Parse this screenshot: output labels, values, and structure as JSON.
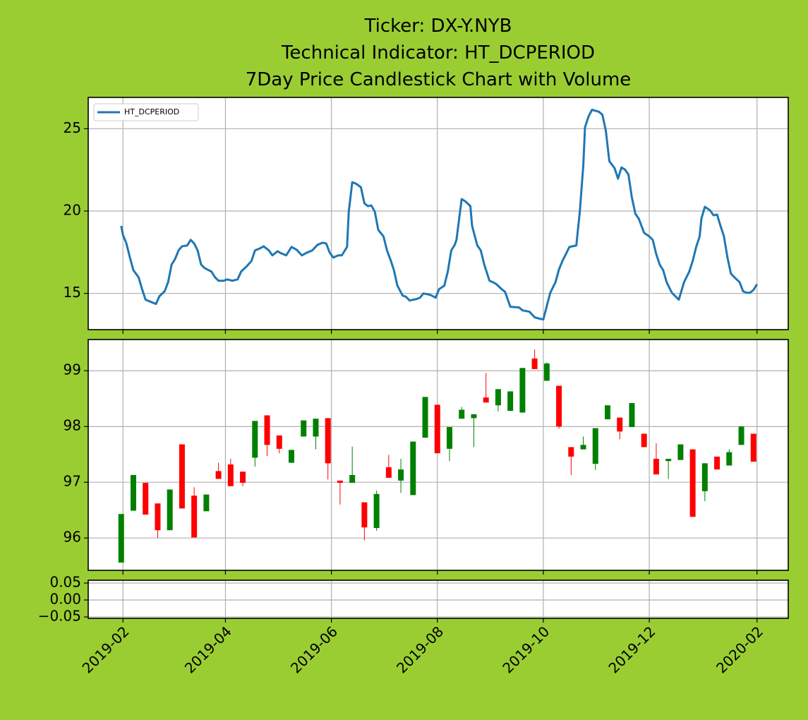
{
  "chart_data": [
    {
      "type": "line",
      "title": [
        "Ticker: DX-Y.NYB",
        "Technical Indicator: HT_DCPERIOD",
        "7Day Price Candlestick Chart with Volume"
      ],
      "x": [
        "2019-01-31",
        "2019-02-01",
        "2019-02-03",
        "2019-02-05",
        "2019-02-07",
        "2019-02-10",
        "2019-02-12",
        "2019-02-14",
        "2019-02-17",
        "2019-02-20",
        "2019-02-22",
        "2019-02-25",
        "2019-02-27",
        "2019-03-01",
        "2019-03-03",
        "2019-03-05",
        "2019-03-07",
        "2019-03-10",
        "2019-03-12",
        "2019-03-14",
        "2019-03-16",
        "2019-03-18",
        "2019-03-20",
        "2019-03-24",
        "2019-03-26",
        "2019-03-28",
        "2019-03-31",
        "2019-04-02",
        "2019-04-05",
        "2019-04-08",
        "2019-04-10",
        "2019-04-13",
        "2019-04-16",
        "2019-04-18",
        "2019-04-21",
        "2019-04-23",
        "2019-04-26",
        "2019-04-28",
        "2019-05-01",
        "2019-05-03",
        "2019-05-06",
        "2019-05-09",
        "2019-05-12",
        "2019-05-15",
        "2019-05-18",
        "2019-05-21",
        "2019-05-24",
        "2019-05-27",
        "2019-05-29",
        "2019-05-31",
        "2019-06-02",
        "2019-06-05",
        "2019-06-07",
        "2019-06-10",
        "2019-06-11",
        "2019-06-13",
        "2019-06-15",
        "2019-06-18",
        "2019-06-20",
        "2019-06-22",
        "2019-06-24",
        "2019-06-26",
        "2019-06-28",
        "2019-07-01",
        "2019-07-03",
        "2019-07-05",
        "2019-07-07",
        "2019-07-09",
        "2019-07-12",
        "2019-07-14",
        "2019-07-16",
        "2019-07-20",
        "2019-07-22",
        "2019-07-24",
        "2019-07-28",
        "2019-07-31",
        "2019-08-02",
        "2019-08-05",
        "2019-08-07",
        "2019-08-09",
        "2019-08-11",
        "2019-08-12",
        "2019-08-15",
        "2019-08-17",
        "2019-08-20",
        "2019-08-21",
        "2019-08-24",
        "2019-08-26",
        "2019-08-28",
        "2019-08-31",
        "2019-09-02",
        "2019-09-04",
        "2019-09-07",
        "2019-09-09",
        "2019-09-12",
        "2019-09-17",
        "2019-09-19",
        "2019-09-23",
        "2019-09-26",
        "2019-09-29",
        "2019-10-01",
        "2019-10-03",
        "2019-10-05",
        "2019-10-08",
        "2019-10-10",
        "2019-10-12",
        "2019-10-14",
        "2019-10-16",
        "2019-10-20",
        "2019-10-22",
        "2019-10-24",
        "2019-10-25",
        "2019-10-27",
        "2019-10-29",
        "2019-11-02",
        "2019-11-04",
        "2019-11-06",
        "2019-11-08",
        "2019-11-11",
        "2019-11-13",
        "2019-11-15",
        "2019-11-17",
        "2019-11-19",
        "2019-11-21",
        "2019-11-23",
        "2019-11-25",
        "2019-11-28",
        "2019-12-01",
        "2019-12-03",
        "2019-12-05",
        "2019-12-07",
        "2019-12-09",
        "2019-12-11",
        "2019-12-14",
        "2019-12-16",
        "2019-12-18",
        "2019-12-21",
        "2019-12-24",
        "2019-12-26",
        "2019-12-28",
        "2019-12-30",
        "2019-12-31",
        "2020-01-02",
        "2020-01-05",
        "2020-01-07",
        "2020-01-09",
        "2020-01-11",
        "2020-01-13",
        "2020-01-15",
        "2020-01-17",
        "2020-01-19",
        "2020-01-22",
        "2020-01-24",
        "2020-01-26",
        "2020-01-28",
        "2020-01-30",
        "2020-02-01"
      ],
      "series": [
        {
          "name": "HT_DCPERIOD",
          "color": "#1f77b4",
          "values": [
            19.1,
            18.55,
            18.03,
            17.18,
            16.41,
            15.98,
            15.26,
            14.62,
            14.49,
            14.36,
            14.83,
            15.13,
            15.68,
            16.75,
            17.09,
            17.61,
            17.86,
            17.91,
            18.25,
            18.03,
            17.61,
            16.75,
            16.54,
            16.32,
            15.98,
            15.77,
            15.77,
            15.85,
            15.77,
            15.85,
            16.32,
            16.62,
            16.97,
            17.61,
            17.74,
            17.86,
            17.61,
            17.31,
            17.56,
            17.44,
            17.31,
            17.82,
            17.65,
            17.31,
            17.48,
            17.61,
            17.95,
            18.08,
            18.03,
            17.48,
            17.18,
            17.31,
            17.31,
            17.82,
            19.96,
            21.75,
            21.67,
            21.45,
            20.47,
            20.3,
            20.34,
            19.96,
            18.85,
            18.46,
            17.61,
            17.05,
            16.41,
            15.47,
            14.87,
            14.79,
            14.57,
            14.66,
            14.74,
            15.0,
            14.91,
            14.74,
            15.26,
            15.47,
            16.32,
            17.61,
            17.95,
            18.25,
            20.73,
            20.6,
            20.3,
            19.1,
            17.91,
            17.61,
            16.75,
            15.77,
            15.68,
            15.56,
            15.26,
            15.09,
            14.19,
            14.15,
            13.97,
            13.89,
            13.55,
            13.46,
            13.42,
            14.23,
            15.04,
            15.68,
            16.45,
            16.97,
            17.39,
            17.82,
            17.91,
            19.96,
            22.74,
            25.09,
            25.73,
            26.15,
            26.03,
            25.85,
            24.87,
            23.03,
            22.61,
            21.97,
            22.65,
            22.52,
            22.22,
            20.81,
            19.83,
            19.53,
            18.68,
            18.46,
            18.25,
            17.39,
            16.75,
            16.41,
            15.68,
            15.04,
            14.83,
            14.62,
            15.68,
            16.32,
            16.97,
            17.82,
            18.46,
            19.53,
            20.26,
            20.04,
            19.74,
            19.79,
            19.1,
            18.46,
            17.18,
            16.2,
            15.98,
            15.68,
            15.13,
            15.04,
            15.04,
            15.21,
            15.56
          ]
        }
      ],
      "ylim": [
        12.8,
        26.9
      ],
      "yticks": [
        15,
        20,
        25
      ],
      "grid": true,
      "legend": "upper left"
    },
    {
      "type": "candlestick",
      "x": [
        "2019-01-31",
        "2019-02-07",
        "2019-02-14",
        "2019-02-21",
        "2019-02-28",
        "2019-03-07",
        "2019-03-14",
        "2019-03-21",
        "2019-03-28",
        "2019-04-04",
        "2019-04-11",
        "2019-04-18",
        "2019-04-25",
        "2019-05-02",
        "2019-05-09",
        "2019-05-16",
        "2019-05-23",
        "2019-05-30",
        "2019-06-06",
        "2019-06-13",
        "2019-06-20",
        "2019-06-27",
        "2019-07-04",
        "2019-07-11",
        "2019-07-18",
        "2019-07-25",
        "2019-08-01",
        "2019-08-08",
        "2019-08-15",
        "2019-08-22",
        "2019-08-29",
        "2019-09-05",
        "2019-09-12",
        "2019-09-19",
        "2019-09-26",
        "2019-10-03",
        "2019-10-10",
        "2019-10-17",
        "2019-10-24",
        "2019-10-31",
        "2019-11-07",
        "2019-11-14",
        "2019-11-21",
        "2019-11-28",
        "2019-12-05",
        "2019-12-12",
        "2019-12-19",
        "2019-12-26",
        "2020-01-02",
        "2020-01-09",
        "2020-01-16",
        "2020-01-23",
        "2020-01-30"
      ],
      "open": [
        95.56,
        96.49,
        96.99,
        96.62,
        96.14,
        97.68,
        96.76,
        96.48,
        97.2,
        97.32,
        97.19,
        97.44,
        98.2,
        97.84,
        97.35,
        97.82,
        97.82,
        98.15,
        97.03,
        96.99,
        96.64,
        96.18,
        97.27,
        97.03,
        96.77,
        97.8,
        98.39,
        97.6,
        98.14,
        98.15,
        98.52,
        98.38,
        98.28,
        98.25,
        99.22,
        98.82,
        98.73,
        97.63,
        97.59,
        97.33,
        98.13,
        98.16,
        97.99,
        97.87,
        97.42,
        97.38,
        97.4,
        97.59,
        96.84,
        97.46,
        97.3,
        97.67,
        97.87
      ],
      "high": [
        96.43,
        97.13,
        96.99,
        96.62,
        96.87,
        97.68,
        96.91,
        96.78,
        97.35,
        97.42,
        97.19,
        98.1,
        98.2,
        97.84,
        97.58,
        98.11,
        98.14,
        98.15,
        97.03,
        97.64,
        96.64,
        96.85,
        97.49,
        97.42,
        97.73,
        98.53,
        98.39,
        97.99,
        98.35,
        98.22,
        98.96,
        98.67,
        98.63,
        99.05,
        99.38,
        99.15,
        98.73,
        97.63,
        97.82,
        97.97,
        98.38,
        98.16,
        98.42,
        97.87,
        97.7,
        97.42,
        97.68,
        97.59,
        97.34,
        97.46,
        97.59,
        98.01,
        97.87
      ],
      "low": [
        95.56,
        96.49,
        96.42,
        96.0,
        96.14,
        96.53,
        96.01,
        96.48,
        97.06,
        96.93,
        96.93,
        97.28,
        97.47,
        97.52,
        97.35,
        97.82,
        97.59,
        97.05,
        96.6,
        96.99,
        95.96,
        96.13,
        97.08,
        96.81,
        96.77,
        97.8,
        97.52,
        97.38,
        98.14,
        97.63,
        98.43,
        98.27,
        98.28,
        98.25,
        99.03,
        98.82,
        97.96,
        97.13,
        97.59,
        97.22,
        98.13,
        97.77,
        97.99,
        97.63,
        97.14,
        97.06,
        97.4,
        96.38,
        96.66,
        97.23,
        97.3,
        97.67,
        97.37
      ],
      "close": [
        96.43,
        97.13,
        96.42,
        96.14,
        96.87,
        96.53,
        96.01,
        96.78,
        97.06,
        96.93,
        96.99,
        98.1,
        97.67,
        97.6,
        97.58,
        98.11,
        98.14,
        97.34,
        96.99,
        97.13,
        96.19,
        96.79,
        97.08,
        97.23,
        97.73,
        98.53,
        97.52,
        97.99,
        98.3,
        98.22,
        98.43,
        98.67,
        98.63,
        99.05,
        99.03,
        99.13,
        98.0,
        97.46,
        97.67,
        97.97,
        98.38,
        97.91,
        98.42,
        97.63,
        97.14,
        97.42,
        97.68,
        96.38,
        97.34,
        97.23,
        97.54,
        98.0,
        97.37
      ],
      "up_color": "green",
      "down_color": "red",
      "ylim": [
        95.42,
        99.56
      ],
      "yticks": [
        96,
        97,
        98,
        99
      ],
      "grid": true
    },
    {
      "type": "bar",
      "ylim": [
        -0.0542,
        0.0583
      ],
      "yticks": [
        {
          "value": -0.05,
          "label": "−0.05"
        },
        {
          "value": 0,
          "label": "0.00"
        },
        0.05
      ],
      "xlim": [
        "2019-01-12",
        "2020-02-19"
      ],
      "xticks": [
        "2019-02",
        "2019-04",
        "2019-06",
        "2019-08",
        "2019-10",
        "2019-12",
        "2020-02"
      ],
      "grid": true
    }
  ]
}
